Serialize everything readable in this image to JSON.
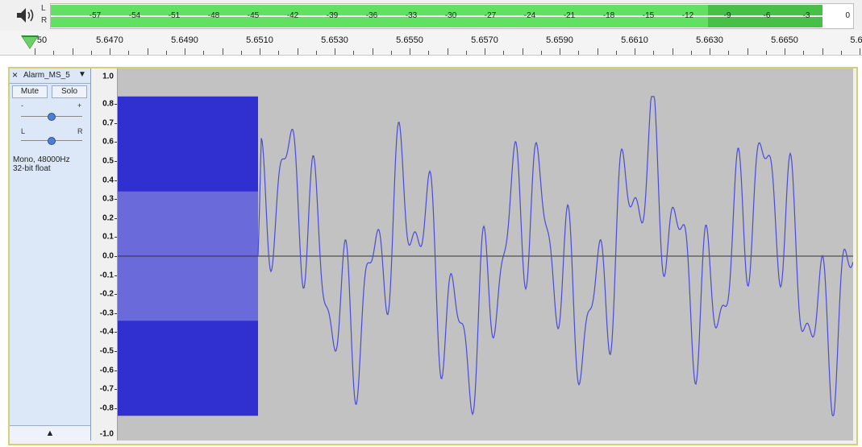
{
  "meter": {
    "channel_left": "L",
    "channel_right": "R",
    "ticks": [
      "-57",
      "-54",
      "-51",
      "-48",
      "-45",
      "-42",
      "-39",
      "-36",
      "-33",
      "-30",
      "-27",
      "-24",
      "-21",
      "-18",
      "-15",
      "-12",
      "-9",
      "-6",
      "-3"
    ],
    "end_label": "0",
    "level_left_db": -3,
    "level_right_db": -3,
    "color_level": "#62e062",
    "color_peak": "#48c048"
  },
  "ruler": {
    "labels": [
      "5.6470",
      "5.6490",
      "5.6510",
      "5.6530",
      "5.6550",
      "5.6570",
      "5.6590",
      "5.6610",
      "5.6630",
      "5.6650"
    ],
    "left_partial": "50",
    "right_partial": "5.6"
  },
  "track": {
    "name": "Alarm_MS_5",
    "close_label": "×",
    "menu_label": "▼",
    "mute_label": "Mute",
    "solo_label": "Solo",
    "gain_minus": "-",
    "gain_plus": "+",
    "pan_left": "L",
    "pan_right": "R",
    "info_line1": "Mono, 48000Hz",
    "info_line2": "32-bit float",
    "collapse_label": "▲"
  },
  "vertical_ruler": {
    "top": "1.0",
    "bottom": "-1.0",
    "labels": [
      "0.8",
      "0.7",
      "0.6",
      "0.5",
      "0.4",
      "0.3",
      "0.2",
      "0.1",
      "0.0",
      "-0.1",
      "-0.2",
      "-0.3",
      "-0.4",
      "-0.5",
      "-0.6",
      "-0.7",
      "-0.8"
    ]
  },
  "colors": {
    "wave_line": "#4a4adc",
    "wave_rms": "#6a6ada",
    "wave_block": "#3030d0",
    "background": "#c2c2c2",
    "track_border": "#d6cf7a"
  }
}
